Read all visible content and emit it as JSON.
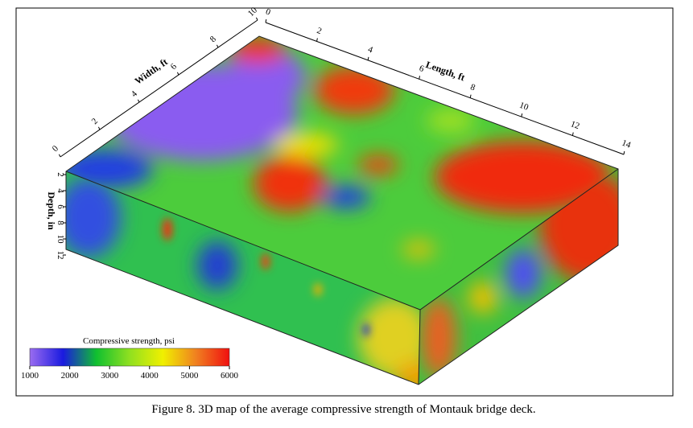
{
  "figure": {
    "caption": "Figure 8. 3D map of the average compressive strength of Montauk bridge deck.",
    "width_axis": {
      "title": "Width, ft",
      "ticks": [
        0,
        2,
        4,
        6,
        8,
        10
      ]
    },
    "length_axis": {
      "title": "Length, ft",
      "ticks": [
        0,
        2,
        4,
        6,
        8,
        10,
        12,
        14
      ]
    },
    "depth_axis": {
      "title": "Depth, in",
      "ticks": [
        2,
        4,
        6,
        8,
        10,
        12
      ]
    },
    "colorbar": {
      "title": "Compressive strength, psi",
      "ticks": [
        1000,
        2000,
        3000,
        4000,
        5000,
        6000
      ],
      "colors": [
        "#9a6cf0",
        "#1a1ae0",
        "#10c030",
        "#90e020",
        "#f0f000",
        "#f08020",
        "#f01010"
      ]
    }
  }
}
